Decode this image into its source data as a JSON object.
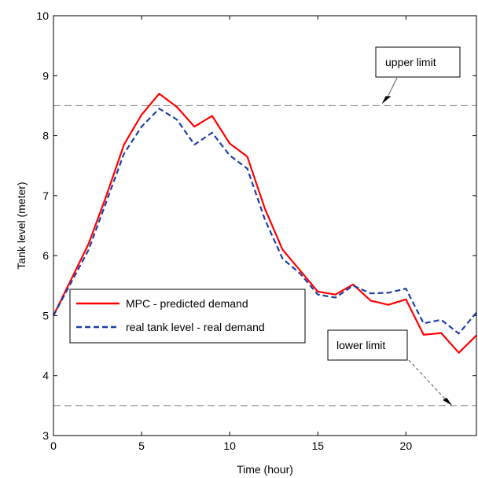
{
  "chart_data": {
    "type": "line",
    "xlabel": "Time (hour)",
    "ylabel": "Tank level (meter)",
    "xlim": [
      0,
      24
    ],
    "ylim": [
      3,
      10
    ],
    "xticks": [
      "0",
      "5",
      "10",
      "15",
      "20"
    ],
    "xtick_values": [
      0,
      5,
      10,
      15,
      20
    ],
    "yticks": [
      "3",
      "4",
      "5",
      "6",
      "7",
      "8",
      "9",
      "10"
    ],
    "ytick_values": [
      3,
      4,
      5,
      6,
      7,
      8,
      9,
      10
    ],
    "grid": false,
    "legend_position": "center-left",
    "series": [
      {
        "name": "MPC - predicted demand",
        "color": "#ff0000",
        "style": "solid",
        "x": [
          0,
          1,
          2,
          3,
          4,
          5,
          6,
          7,
          8,
          9,
          10,
          11,
          12,
          13,
          14,
          15,
          16,
          17,
          18,
          19,
          20,
          21,
          22,
          23,
          24
        ],
        "values": [
          5.0,
          5.6,
          6.2,
          7.0,
          7.85,
          8.35,
          8.7,
          8.48,
          8.15,
          8.33,
          7.87,
          7.65,
          6.78,
          6.1,
          5.75,
          5.4,
          5.35,
          5.52,
          5.25,
          5.18,
          5.27,
          4.68,
          4.71,
          4.38,
          4.67
        ]
      },
      {
        "name": "real tank level - real demand",
        "color": "#1f3fa5",
        "style": "dashed",
        "x": [
          0,
          1,
          2,
          3,
          4,
          5,
          6,
          7,
          8,
          9,
          10,
          11,
          12,
          13,
          14,
          15,
          16,
          17,
          18,
          19,
          20,
          21,
          22,
          23,
          24
        ],
        "values": [
          5.0,
          5.55,
          6.1,
          6.9,
          7.7,
          8.15,
          8.45,
          8.27,
          7.85,
          8.05,
          7.67,
          7.45,
          6.6,
          5.95,
          5.7,
          5.35,
          5.3,
          5.5,
          5.37,
          5.38,
          5.45,
          4.87,
          4.93,
          4.7,
          5.05
        ]
      }
    ],
    "reference_lines": [
      {
        "y": 8.5,
        "style": "dashed",
        "color": "#777777"
      },
      {
        "y": 3.5,
        "style": "dashed",
        "color": "#777777"
      }
    ],
    "annotations": [
      {
        "text": "upper limit",
        "arrow_to": [
          18,
          8.5
        ]
      },
      {
        "text": "lower limit",
        "arrow_to": [
          22,
          3.5
        ]
      }
    ]
  }
}
